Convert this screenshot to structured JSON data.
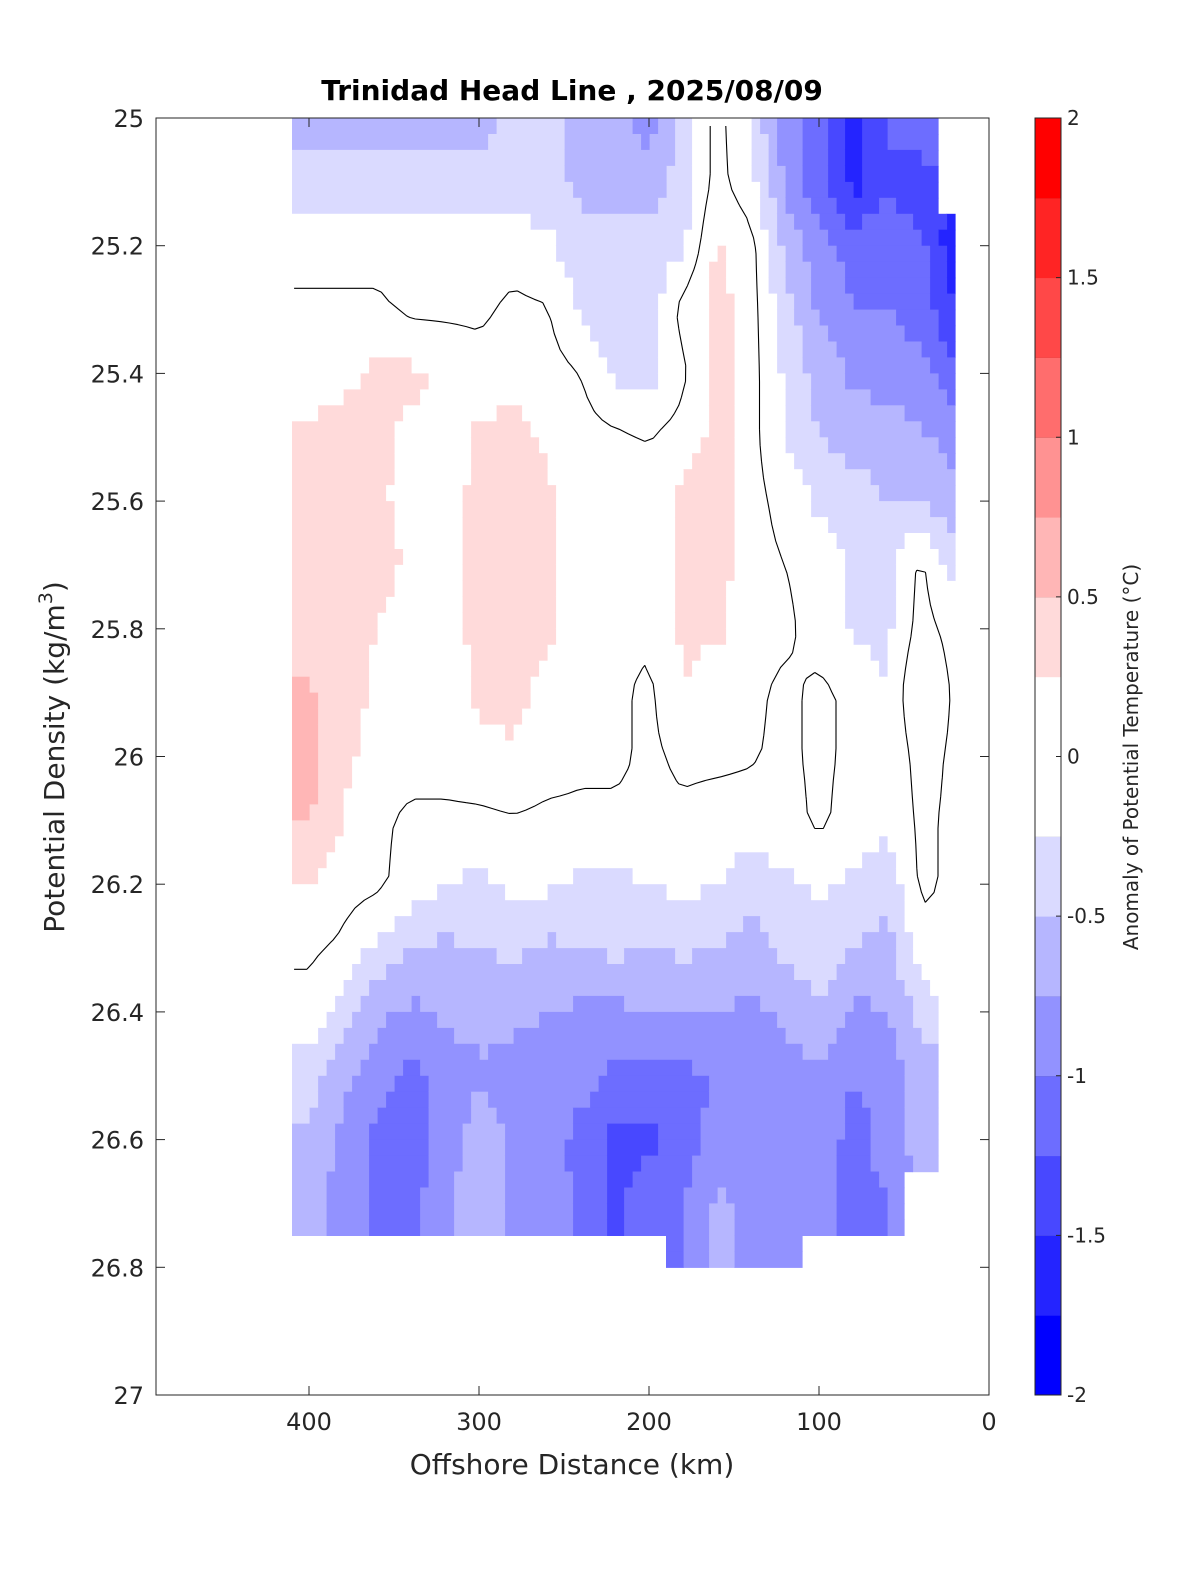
{
  "chart_data": {
    "type": "contour",
    "title": "Trinidad Head Line , 2025/08/09",
    "xlabel": "Offshore Distance (km)",
    "ylabel": {
      "main": "Potential Density (kg/m",
      "sup": "3",
      "end": ")"
    },
    "colorbar_label": "Anomaly of Potential Temperature (°C)",
    "xlim": [
      0,
      490
    ],
    "x_reversed": true,
    "ylim": [
      25,
      27
    ],
    "y_reversed": true,
    "xticks": [
      400,
      300,
      200,
      100,
      0
    ],
    "xtick_labels": [
      "400",
      "300",
      "200",
      "100",
      "0"
    ],
    "yticks": [
      25,
      25.2,
      25.4,
      25.6,
      25.8,
      26,
      26.2,
      26.4,
      26.6,
      26.8,
      27
    ],
    "ytick_labels": [
      "25",
      "25.2",
      "25.4",
      "25.6",
      "25.8",
      "26",
      "26.2",
      "26.4",
      "26.6",
      "26.8",
      "27"
    ],
    "clim": [
      -2,
      2
    ],
    "contour_step": 0.25,
    "contour_line_level": 0,
    "colorbar_ticks": [
      2,
      1.5,
      1,
      0.5,
      0,
      -0.5,
      -1,
      -1.5,
      -2
    ],
    "colorbar_tick_labels": [
      "2",
      "1.5",
      "1",
      "0.5",
      "0",
      "-0.5",
      "-1",
      "-1.5",
      "-2"
    ],
    "colormap": [
      "#0000ff",
      "#2424ff",
      "#4848ff",
      "#6d6dff",
      "#9292ff",
      "#b6b6ff",
      "#dadaff",
      "#ffffff",
      "#ffffff",
      "#ffdada",
      "#ffb6b6",
      "#ff9292",
      "#ff6d6d",
      "#ff4848",
      "#ff2424",
      "#ff0000"
    ],
    "x": [
      20,
      40,
      60,
      80,
      100,
      120,
      140,
      160,
      180,
      200,
      220,
      240,
      260,
      280,
      300,
      320,
      340,
      360,
      380,
      400
    ],
    "y": [
      25.0,
      25.1,
      25.2,
      25.3,
      25.4,
      25.5,
      25.6,
      25.7,
      25.8,
      25.9,
      26.0,
      26.1,
      26.2,
      26.3,
      26.4,
      26.5,
      26.6,
      26.7,
      26.8
    ],
    "z": [
      [
        null,
        -1.0,
        -1.2,
        -1.6,
        -1.1,
        -0.9,
        -0.3,
        0.1,
        -0.4,
        -0.9,
        -0.6,
        -0.6,
        -0.4,
        -0.4,
        -0.6,
        -0.6,
        -0.6,
        -0.6,
        -0.6,
        -0.6
      ],
      [
        null,
        -1.4,
        -1.3,
        -1.6,
        -1.2,
        -0.8,
        -0.2,
        0.1,
        -0.4,
        -0.6,
        -0.6,
        -0.6,
        -0.4,
        -0.4,
        -0.4,
        -0.4,
        -0.4,
        -0.4,
        -0.4,
        -0.4
      ],
      [
        -1.7,
        -1.2,
        -1.1,
        -1.1,
        -0.9,
        -0.6,
        0.1,
        0.3,
        -0.3,
        -0.4,
        -0.4,
        -0.4,
        -0.2,
        -0.1,
        -0.1,
        -0.1,
        -0.1,
        -0.1,
        -0.1,
        -0.1
      ],
      [
        -1.5,
        -1.1,
        -1.0,
        -1.0,
        -0.8,
        -0.4,
        0.1,
        0.35,
        0.1,
        -0.4,
        -0.4,
        -0.3,
        0.02,
        0.05,
        -0.05,
        -0.05,
        -0.05,
        0.05,
        0.05,
        0.05
      ],
      [
        -1.2,
        -0.9,
        -0.9,
        -0.8,
        -0.6,
        -0.3,
        0.1,
        0.35,
        -0.05,
        -0.35,
        -0.3,
        0.0,
        0.1,
        0.15,
        0.1,
        0.2,
        0.3,
        0.3,
        0.2,
        0.1
      ],
      [
        -0.9,
        -0.7,
        -0.6,
        -0.6,
        -0.5,
        -0.3,
        0.1,
        0.35,
        0.1,
        0.0,
        0.05,
        0.1,
        0.2,
        0.35,
        0.3,
        0.1,
        0.2,
        0.3,
        0.35,
        0.3
      ],
      [
        -0.7,
        -0.5,
        -0.5,
        -0.4,
        -0.3,
        -0.1,
        0.1,
        0.35,
        0.35,
        0.05,
        0.05,
        0.1,
        0.3,
        0.4,
        0.35,
        0.1,
        0.15,
        0.3,
        0.35,
        0.3
      ],
      [
        -0.4,
        0.05,
        -0.3,
        -0.3,
        -0.1,
        0.0,
        0.1,
        0.35,
        0.35,
        0.05,
        0.05,
        0.1,
        0.3,
        0.4,
        0.35,
        0.1,
        0.2,
        0.35,
        0.4,
        0.35
      ],
      [
        -0.1,
        0.1,
        -0.3,
        -0.3,
        -0.1,
        0.05,
        0.1,
        0.3,
        0.3,
        0.05,
        0.05,
        0.1,
        0.3,
        0.35,
        0.35,
        0.1,
        0.1,
        0.25,
        0.35,
        0.3
      ],
      [
        -0.05,
        0.3,
        -0.25,
        -0.05,
        0.05,
        -0.05,
        0.05,
        0.1,
        0.25,
        -0.05,
        0.05,
        0.1,
        0.15,
        0.35,
        0.3,
        0.1,
        0.1,
        0.2,
        0.35,
        0.55
      ],
      [
        -0.05,
        0.1,
        -0.2,
        -0.05,
        0.05,
        -0.05,
        0.02,
        0.05,
        0.05,
        -0.05,
        0.05,
        0.05,
        0.1,
        0.2,
        0.15,
        0.1,
        0.1,
        0.15,
        0.3,
        0.6
      ],
      [
        -0.05,
        0.05,
        -0.2,
        -0.1,
        0.05,
        -0.1,
        -0.1,
        -0.1,
        -0.05,
        -0.05,
        -0.05,
        -0.05,
        -0.05,
        -0.02,
        -0.05,
        -0.05,
        -0.05,
        0.05,
        0.25,
        0.5
      ],
      [
        -0.05,
        0.05,
        -0.4,
        -0.3,
        -0.2,
        -0.3,
        -0.4,
        -0.25,
        -0.2,
        -0.25,
        -0.3,
        -0.3,
        -0.2,
        -0.2,
        -0.3,
        -0.25,
        -0.1,
        0.05,
        0.1,
        0.25
      ],
      [
        -0.05,
        -0.1,
        -0.6,
        -0.5,
        -0.3,
        -0.45,
        -0.6,
        -0.5,
        -0.45,
        -0.5,
        -0.45,
        -0.5,
        -0.55,
        -0.45,
        -0.5,
        -0.55,
        -0.5,
        -0.3,
        -0.05,
        0.05
      ],
      [
        null,
        -0.4,
        -0.75,
        -0.8,
        -0.55,
        -0.7,
        -0.8,
        -0.75,
        -0.75,
        -0.75,
        -0.8,
        -0.8,
        -0.75,
        -0.7,
        -0.65,
        -0.7,
        -0.8,
        -0.7,
        -0.35,
        -0.1
      ],
      [
        null,
        -0.6,
        -0.9,
        -1.0,
        -0.8,
        -0.85,
        -0.9,
        -1.0,
        -1.05,
        -1.1,
        -1.1,
        -0.9,
        -0.8,
        -0.85,
        -0.8,
        -0.9,
        -1.1,
        -0.9,
        -0.7,
        -0.4
      ],
      [
        null,
        -0.6,
        -0.9,
        -1.1,
        -0.85,
        -0.9,
        -0.8,
        -0.9,
        -1.1,
        -1.3,
        -1.3,
        -1.1,
        -0.85,
        -0.8,
        -0.6,
        -0.9,
        -1.15,
        -1.05,
        -0.8,
        -0.55
      ],
      [
        null,
        null,
        -1.0,
        -1.1,
        -0.9,
        -0.9,
        -0.8,
        -0.7,
        -1.0,
        -1.1,
        -1.3,
        -1.05,
        -0.9,
        -0.8,
        -0.6,
        -0.8,
        -1.1,
        -1.05,
        -0.9,
        -0.6
      ],
      [
        null,
        null,
        null,
        null,
        null,
        -0.9,
        -0.9,
        -0.6,
        -1.0,
        null,
        null,
        null,
        null,
        null,
        null,
        null,
        null,
        null,
        null,
        null
      ]
    ]
  }
}
